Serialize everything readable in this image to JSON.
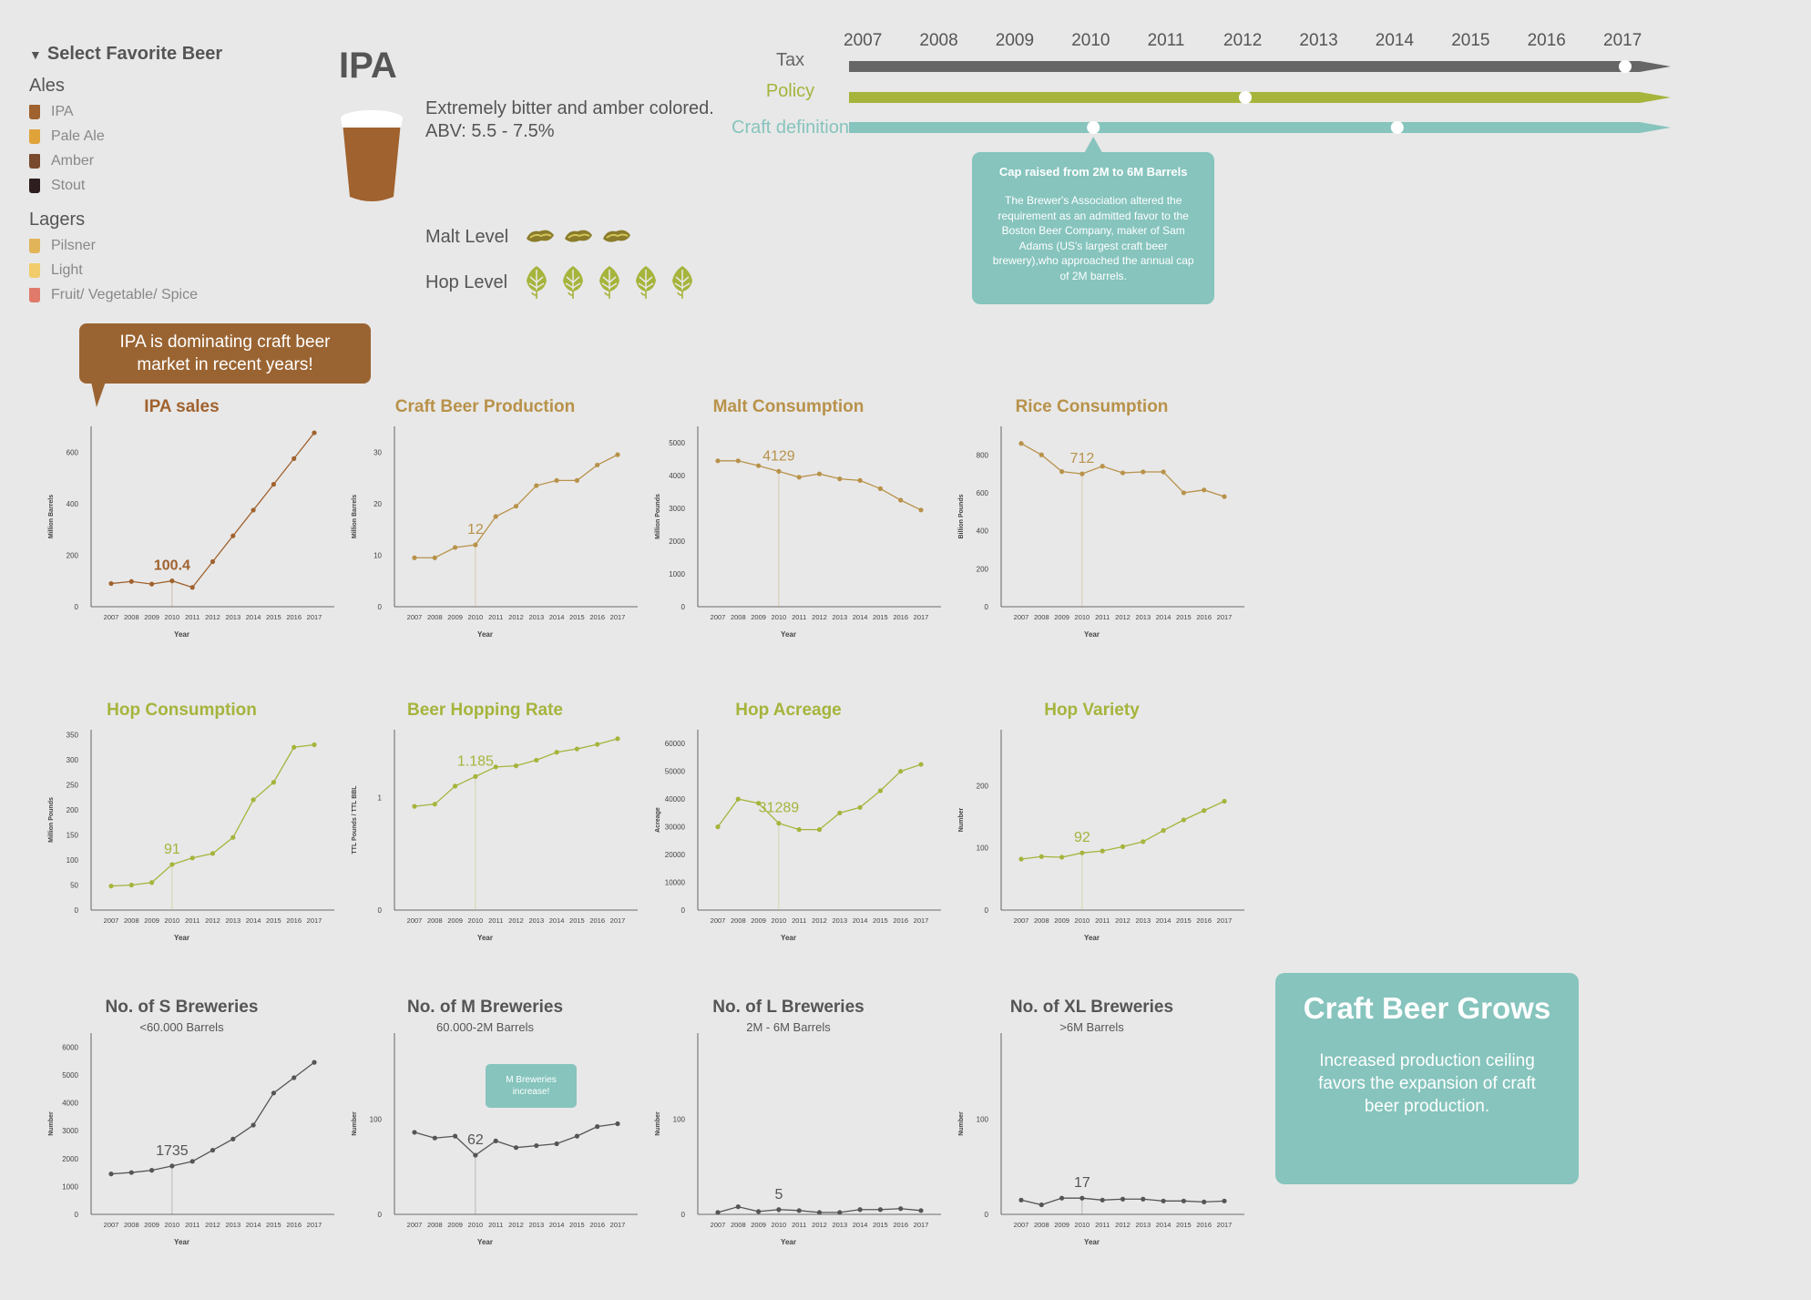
{
  "sidebar": {
    "title": "Select Favorite Beer",
    "groups": [
      {
        "label": "Ales",
        "items": [
          {
            "label": "IPA",
            "color": "#a0622e"
          },
          {
            "label": "Pale Ale",
            "color": "#e0a33a"
          },
          {
            "label": "Amber",
            "color": "#7a4a2e"
          },
          {
            "label": "Stout",
            "color": "#2e1e20"
          }
        ]
      },
      {
        "label": "Lagers",
        "items": [
          {
            "label": "Pilsner",
            "color": "#e2b45a"
          },
          {
            "label": "Light",
            "color": "#f2cc6a"
          },
          {
            "label": "Fruit/ Vegetable/ Spice",
            "color": "#e07a6a"
          }
        ]
      }
    ]
  },
  "beer": {
    "name": "IPA",
    "description": "Extremely bitter and amber colored.",
    "abv": "ABV: 5.5 - 7.5%",
    "malt_label": "Malt Level",
    "malt_level": 3,
    "hop_label": "Hop Level",
    "hop_level": 5,
    "color": "#a0622e"
  },
  "timeline": {
    "years": [
      "2007",
      "2008",
      "2009",
      "2010",
      "2011",
      "2012",
      "2013",
      "2014",
      "2015",
      "2016",
      "2017"
    ],
    "tracks": [
      {
        "label": "Tax",
        "color": "#666666",
        "markers": [
          "2017"
        ]
      },
      {
        "label": "Policy",
        "color": "#a6b43c",
        "markers": [
          "2012"
        ]
      },
      {
        "label": "Craft definition",
        "color": "#86c4bd",
        "markers": [
          "2010",
          "2014"
        ]
      }
    ],
    "tooltip": {
      "title": "Cap raised from 2M to 6M Barrels",
      "body": "The Brewer's Association altered the requirement as an admitted favor to the Boston Beer Company, maker of Sam Adams (US's largest craft beer brewery),who approached the annual cap of 2M barrels."
    }
  },
  "callout": {
    "text": "IPA is dominating craft beer market in recent years!"
  },
  "summary": {
    "title": "Craft Beer Grows",
    "body": "Increased production ceiling favors the expansion of craft beer production."
  },
  "m_breweries_note": "M Breweries increase!",
  "colors": {
    "brown": "#a0622e",
    "green": "#a6b43c",
    "gold": "#b8924a",
    "teal": "#86c4bd",
    "dark": "#555555"
  },
  "chart_data": [
    {
      "type": "line",
      "title": "IPA sales",
      "ylabel": "Million Barrels",
      "xlabel": "Year",
      "color": "#a0622e",
      "ylim": [
        0,
        700
      ],
      "yticks": [
        0,
        200,
        400,
        600
      ],
      "x": [
        "2007",
        "2008",
        "2009",
        "2010",
        "2011",
        "2012",
        "2013",
        "2014",
        "2015",
        "2016",
        "2017"
      ],
      "values": [
        90,
        98,
        88,
        100.4,
        75,
        175,
        275,
        375,
        475,
        575,
        675
      ],
      "highlight": "100.4"
    },
    {
      "type": "line",
      "title": "Craft Beer Production",
      "ylabel": "Million Barrels",
      "xlabel": "Year",
      "color": "#b8924a",
      "ylim": [
        0,
        35
      ],
      "yticks": [
        0,
        10,
        20,
        30
      ],
      "x": [
        "2007",
        "2008",
        "2009",
        "2010",
        "2011",
        "2012",
        "2013",
        "2014",
        "2015",
        "2016",
        "2017"
      ],
      "values": [
        9.5,
        9.5,
        11.5,
        12,
        17.5,
        19.5,
        23.5,
        24.5,
        24.5,
        27.5,
        29.5
      ],
      "highlight": "12"
    },
    {
      "type": "line",
      "title": "Malt Consumption",
      "ylabel": "Million Pounds",
      "xlabel": "Year",
      "color": "#b8924a",
      "ylim": [
        0,
        5500
      ],
      "yticks": [
        0,
        1000,
        2000,
        3000,
        4000,
        5000
      ],
      "x": [
        "2007",
        "2008",
        "2009",
        "2010",
        "2011",
        "2012",
        "2013",
        "2014",
        "2015",
        "2016",
        "2017"
      ],
      "values": [
        4450,
        4450,
        4300,
        4129,
        3950,
        4050,
        3900,
        3850,
        3600,
        3250,
        2950
      ],
      "highlight": "4129"
    },
    {
      "type": "line",
      "title": "Rice Consumption",
      "ylabel": "Billion Pounds",
      "xlabel": "Year",
      "color": "#b8924a",
      "ylim": [
        0,
        950
      ],
      "yticks": [
        0,
        200,
        400,
        600,
        800
      ],
      "x": [
        "2007",
        "2008",
        "2009",
        "2010",
        "2011",
        "2012",
        "2013",
        "2014",
        "2015",
        "2016",
        "2017"
      ],
      "values": [
        860,
        800,
        712,
        700,
        740,
        705,
        710,
        710,
        600,
        615,
        580
      ],
      "highlight": "712"
    },
    {
      "type": "line",
      "title": "Hop Consumption",
      "ylabel": "Million Pounds",
      "xlabel": "Year",
      "color": "#a6b43c",
      "ylim": [
        0,
        360
      ],
      "yticks": [
        0,
        50,
        100,
        150,
        200,
        250,
        300,
        350
      ],
      "x": [
        "2007",
        "2008",
        "2009",
        "2010",
        "2011",
        "2012",
        "2013",
        "2014",
        "2015",
        "2016",
        "2017"
      ],
      "values": [
        48,
        50,
        55,
        91,
        104,
        113,
        145,
        220,
        255,
        325,
        330
      ],
      "highlight": "91"
    },
    {
      "type": "line",
      "title": "Beer Hopping Rate",
      "ylabel": "TTL Pounds / TTL BBL",
      "xlabel": "Year",
      "color": "#a6b43c",
      "ylim": [
        0,
        1.6
      ],
      "yticks": [
        0,
        1
      ],
      "x": [
        "2007",
        "2008",
        "2009",
        "2010",
        "2011",
        "2012",
        "2013",
        "2014",
        "2015",
        "2016",
        "2017"
      ],
      "values": [
        0.92,
        0.94,
        1.1,
        1.185,
        1.27,
        1.28,
        1.33,
        1.4,
        1.43,
        1.47,
        1.52
      ],
      "highlight": "1.185"
    },
    {
      "type": "line",
      "title": "Hop Acreage",
      "ylabel": "Acreage",
      "xlabel": "Year",
      "color": "#a6b43c",
      "ylim": [
        0,
        65000
      ],
      "yticks": [
        0,
        10000,
        20000,
        30000,
        40000,
        50000,
        60000
      ],
      "x": [
        "2007",
        "2008",
        "2009",
        "2010",
        "2011",
        "2012",
        "2013",
        "2014",
        "2015",
        "2016",
        "2017"
      ],
      "values": [
        30000,
        40000,
        38500,
        31289,
        29000,
        29000,
        35000,
        37000,
        43000,
        50000,
        52500
      ],
      "highlight": "31289"
    },
    {
      "type": "line",
      "title": "Hop Variety",
      "ylabel": "Number",
      "xlabel": "Year",
      "color": "#a6b43c",
      "ylim": [
        0,
        290
      ],
      "yticks": [
        0,
        100,
        200
      ],
      "x": [
        "2007",
        "2008",
        "2009",
        "2010",
        "2011",
        "2012",
        "2013",
        "2014",
        "2015",
        "2016",
        "2017"
      ],
      "values": [
        82,
        86,
        85,
        92,
        95,
        102,
        110,
        128,
        145,
        160,
        175
      ],
      "highlight": "92"
    },
    {
      "type": "line",
      "title": "No. of S Breweries",
      "subtitle": "<60.000 Barrels",
      "ylabel": "Number",
      "xlabel": "Year",
      "color": "#555555",
      "ylim": [
        0,
        6500
      ],
      "yticks": [
        0,
        1000,
        2000,
        3000,
        4000,
        5000,
        6000
      ],
      "x": [
        "2007",
        "2008",
        "2009",
        "2010",
        "2011",
        "2012",
        "2013",
        "2014",
        "2015",
        "2016",
        "2017"
      ],
      "values": [
        1450,
        1500,
        1580,
        1735,
        1900,
        2300,
        2700,
        3200,
        4350,
        4900,
        5450
      ],
      "highlight": "1735"
    },
    {
      "type": "line",
      "title": "No. of M Breweries",
      "subtitle": "60.000-2M Barrels",
      "ylabel": "Number",
      "xlabel": "Year",
      "color": "#555555",
      "ylim": [
        0,
        190
      ],
      "yticks": [
        0,
        100
      ],
      "x": [
        "2007",
        "2008",
        "2009",
        "2010",
        "2011",
        "2012",
        "2013",
        "2014",
        "2015",
        "2016",
        "2017"
      ],
      "values": [
        86,
        80,
        82,
        62,
        77,
        70,
        72,
        74,
        82,
        92,
        95
      ],
      "highlight": "62"
    },
    {
      "type": "line",
      "title": "No. of L Breweries",
      "subtitle": "2M - 6M Barrels",
      "ylabel": "Number",
      "xlabel": "Year",
      "color": "#555555",
      "ylim": [
        0,
        190
      ],
      "yticks": [
        0,
        100
      ],
      "x": [
        "2007",
        "2008",
        "2009",
        "2010",
        "2011",
        "2012",
        "2013",
        "2014",
        "2015",
        "2016",
        "2017"
      ],
      "values": [
        2,
        8,
        3,
        5,
        4,
        2,
        2,
        5,
        5,
        6,
        4
      ],
      "highlight": "5"
    },
    {
      "type": "line",
      "title": "No. of XL Breweries",
      "subtitle": ">6M Barrels",
      "ylabel": "Number",
      "xlabel": "Year",
      "color": "#555555",
      "ylim": [
        0,
        190
      ],
      "yticks": [
        0,
        100
      ],
      "x": [
        "2007",
        "2008",
        "2009",
        "2010",
        "2011",
        "2012",
        "2013",
        "2014",
        "2015",
        "2016",
        "2017"
      ],
      "values": [
        15,
        10,
        17,
        17,
        15,
        16,
        16,
        14,
        14,
        13,
        14
      ],
      "highlight": "17"
    }
  ]
}
